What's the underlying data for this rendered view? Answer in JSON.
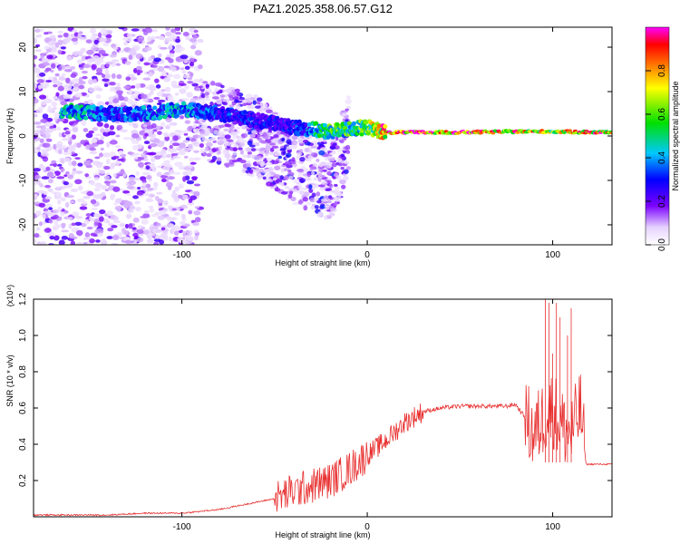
{
  "figure": {
    "title": "PAZ1.2025.358.06.57.G12"
  },
  "colorbar": {
    "label": "Normalized spectral amplitude",
    "ticks": [
      "0.0",
      "0.2",
      "0.4",
      "0.6",
      "0.8"
    ],
    "tick_values": [
      0.0,
      0.2,
      0.4,
      0.6,
      0.8
    ],
    "range": [
      0,
      1
    ]
  },
  "chart_data": [
    {
      "type": "heatmap",
      "xlabel": "Height of straight line (km)",
      "ylabel": "Frequency (Hz)",
      "xlim": [
        -180,
        132
      ],
      "ylim": [
        -24.5,
        24.5
      ],
      "xticks": [
        "-100",
        "0",
        "100"
      ],
      "xtick_values": [
        -100,
        0,
        100
      ],
      "yticks": [
        "20",
        "10",
        "0",
        "-10",
        "-20"
      ],
      "ytick_values": [
        20,
        10,
        0,
        -10,
        -20
      ],
      "colormap": "rainbow (white-violet-blue-cyan-green-yellow-orange-red-magenta)",
      "ridge": [
        {
          "x": -160,
          "f": 5.5,
          "amp": 0.5
        },
        {
          "x": -140,
          "f": 5.0,
          "amp": 0.35
        },
        {
          "x": -120,
          "f": 5.0,
          "amp": 0.4
        },
        {
          "x": -100,
          "f": 6.0,
          "amp": 0.45
        },
        {
          "x": -80,
          "f": 5.0,
          "amp": 0.35
        },
        {
          "x": -60,
          "f": 3.5,
          "amp": 0.3
        },
        {
          "x": -40,
          "f": 2.0,
          "amp": 0.3
        },
        {
          "x": -20,
          "f": 1.0,
          "amp": 0.6
        },
        {
          "x": 0,
          "f": 2.0,
          "amp": 0.6
        },
        {
          "x": 10,
          "f": 0.8,
          "amp": 0.95
        },
        {
          "x": 50,
          "f": 0.8,
          "amp": 1.0
        },
        {
          "x": 80,
          "f": 1.0,
          "amp": 0.9
        },
        {
          "x": 100,
          "f": 1.0,
          "amp": 0.75
        },
        {
          "x": 132,
          "f": 0.8,
          "amp": 0.95
        }
      ]
    },
    {
      "type": "line",
      "xlabel": "Height of straight line (km)",
      "ylabel": "SNR (10 * v/v)",
      "y_multiplier": "(x10⁴)",
      "xlim": [
        -180,
        132
      ],
      "ylim": [
        0,
        1.2
      ],
      "xticks": [
        "-100",
        "0",
        "100"
      ],
      "xtick_values": [
        -100,
        0,
        100
      ],
      "yticks": [
        "0.2",
        "0.4",
        "0.6",
        "0.8",
        "1.0",
        "1.2"
      ],
      "ytick_values": [
        0.2,
        0.4,
        0.6,
        0.8,
        1.0,
        1.2
      ],
      "color": "#e83030",
      "series": [
        {
          "x": [
            -180,
            -160,
            -140,
            -120,
            -100,
            -90,
            -80,
            -70,
            -60,
            -50,
            -40,
            -30,
            -20,
            -10,
            0,
            10,
            20,
            30,
            40,
            50,
            60,
            70,
            75,
            80,
            85,
            90,
            95,
            100,
            105,
            110,
            115,
            118,
            125,
            132
          ],
          "y": [
            0.01,
            0.01,
            0.01,
            0.02,
            0.02,
            0.03,
            0.04,
            0.06,
            0.08,
            0.1,
            0.14,
            0.17,
            0.2,
            0.26,
            0.34,
            0.42,
            0.52,
            0.58,
            0.6,
            0.61,
            0.61,
            0.61,
            0.61,
            0.62,
            0.55,
            0.45,
            0.55,
            0.6,
            0.5,
            0.45,
            0.6,
            0.29,
            0.29,
            0.29
          ],
          "spikes_x": [
            96,
            98,
            100,
            102,
            104,
            108,
            110
          ],
          "spikes_y": [
            1.2,
            1.18,
            0.9,
            1.18,
            1.1,
            1.0,
            1.15
          ]
        }
      ]
    }
  ]
}
